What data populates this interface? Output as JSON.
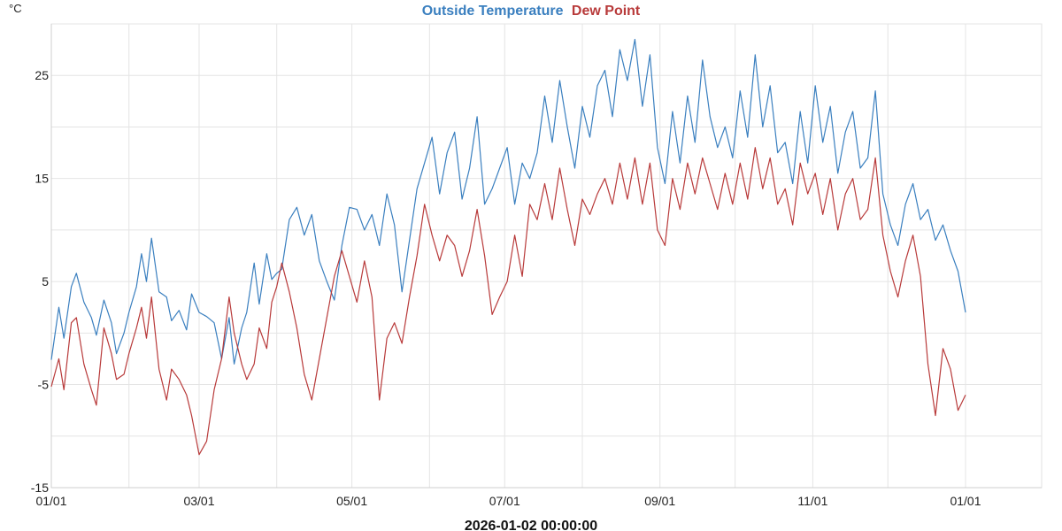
{
  "chart_data": {
    "type": "line",
    "title": "",
    "xlabel": "2026-01-02 00:00:00",
    "ylabel": "°C",
    "x_start": "2025-01-01",
    "x_end": "2026-01-01",
    "xlim": [
      "2025-01-01",
      "2026-04-06"
    ],
    "ylim": [
      -15,
      30
    ],
    "grid": true,
    "legend": "top-center",
    "x_ticks": [
      {
        "date": "2025-01-01",
        "label": "01/01"
      },
      {
        "date": "2025-03-01",
        "label": "03/01"
      },
      {
        "date": "2025-05-01",
        "label": "05/01"
      },
      {
        "date": "2025-07-01",
        "label": "07/01"
      },
      {
        "date": "2025-09-01",
        "label": "09/01"
      },
      {
        "date": "2025-11-01",
        "label": "11/01"
      },
      {
        "date": "2026-01-01",
        "label": "01/01"
      }
    ],
    "y_ticks": [
      {
        "value": 25,
        "label": "25"
      },
      {
        "value": 15,
        "label": "15"
      },
      {
        "value": 5,
        "label": "5"
      },
      {
        "value": -5,
        "label": "-5"
      },
      {
        "value": -15,
        "label": "-15"
      }
    ],
    "series": [
      {
        "name": "Outside Temperature",
        "color": "#3a7fbf",
        "points": [
          [
            "2025-01-01",
            -2.6
          ],
          [
            "2025-01-04",
            2.5
          ],
          [
            "2025-01-06",
            -0.5
          ],
          [
            "2025-01-09",
            4.5
          ],
          [
            "2025-01-11",
            5.8
          ],
          [
            "2025-01-14",
            3.0
          ],
          [
            "2025-01-17",
            1.5
          ],
          [
            "2025-01-19",
            -0.2
          ],
          [
            "2025-01-22",
            3.2
          ],
          [
            "2025-01-25",
            1.0
          ],
          [
            "2025-01-27",
            -2.0
          ],
          [
            "2025-01-30",
            0.0
          ],
          [
            "2025-02-01",
            2.0
          ],
          [
            "2025-02-04",
            4.5
          ],
          [
            "2025-02-06",
            7.7
          ],
          [
            "2025-02-08",
            5.0
          ],
          [
            "2025-02-10",
            9.2
          ],
          [
            "2025-02-13",
            4.0
          ],
          [
            "2025-02-16",
            3.5
          ],
          [
            "2025-02-18",
            1.2
          ],
          [
            "2025-02-21",
            2.2
          ],
          [
            "2025-02-24",
            0.3
          ],
          [
            "2025-02-26",
            3.8
          ],
          [
            "2025-03-01",
            2.0
          ],
          [
            "2025-03-04",
            1.6
          ],
          [
            "2025-03-07",
            1.0
          ],
          [
            "2025-03-10",
            -2.5
          ],
          [
            "2025-03-13",
            1.5
          ],
          [
            "2025-03-15",
            -3.0
          ],
          [
            "2025-03-18",
            0.5
          ],
          [
            "2025-03-20",
            2.0
          ],
          [
            "2025-03-23",
            6.8
          ],
          [
            "2025-03-25",
            2.8
          ],
          [
            "2025-03-28",
            7.7
          ],
          [
            "2025-03-30",
            5.2
          ],
          [
            "2025-04-01",
            5.8
          ],
          [
            "2025-04-03",
            6.2
          ],
          [
            "2025-04-06",
            11.0
          ],
          [
            "2025-04-09",
            12.2
          ],
          [
            "2025-04-12",
            9.5
          ],
          [
            "2025-04-15",
            11.5
          ],
          [
            "2025-04-18",
            7.0
          ],
          [
            "2025-04-21",
            5.0
          ],
          [
            "2025-04-24",
            3.2
          ],
          [
            "2025-04-27",
            8.5
          ],
          [
            "2025-04-30",
            12.2
          ],
          [
            "2025-05-03",
            12.0
          ],
          [
            "2025-05-06",
            10.0
          ],
          [
            "2025-05-09",
            11.5
          ],
          [
            "2025-05-12",
            8.5
          ],
          [
            "2025-05-15",
            13.5
          ],
          [
            "2025-05-18",
            10.5
          ],
          [
            "2025-05-21",
            4.0
          ],
          [
            "2025-05-24",
            9.0
          ],
          [
            "2025-05-27",
            14.0
          ],
          [
            "2025-05-30",
            16.5
          ],
          [
            "2025-06-02",
            19.0
          ],
          [
            "2025-06-05",
            13.5
          ],
          [
            "2025-06-08",
            17.5
          ],
          [
            "2025-06-11",
            19.5
          ],
          [
            "2025-06-14",
            13.0
          ],
          [
            "2025-06-17",
            16.0
          ],
          [
            "2025-06-20",
            21.0
          ],
          [
            "2025-06-23",
            12.5
          ],
          [
            "2025-06-26",
            14.0
          ],
          [
            "2025-06-29",
            16.0
          ],
          [
            "2025-07-02",
            18.0
          ],
          [
            "2025-07-05",
            12.5
          ],
          [
            "2025-07-08",
            16.5
          ],
          [
            "2025-07-11",
            15.0
          ],
          [
            "2025-07-14",
            17.5
          ],
          [
            "2025-07-17",
            23.0
          ],
          [
            "2025-07-20",
            18.5
          ],
          [
            "2025-07-23",
            24.5
          ],
          [
            "2025-07-26",
            20.0
          ],
          [
            "2025-07-29",
            16.0
          ],
          [
            "2025-08-01",
            22.0
          ],
          [
            "2025-08-04",
            19.0
          ],
          [
            "2025-08-07",
            24.0
          ],
          [
            "2025-08-10",
            25.5
          ],
          [
            "2025-08-13",
            21.0
          ],
          [
            "2025-08-16",
            27.5
          ],
          [
            "2025-08-19",
            24.5
          ],
          [
            "2025-08-22",
            28.5
          ],
          [
            "2025-08-25",
            22.0
          ],
          [
            "2025-08-28",
            27.0
          ],
          [
            "2025-08-31",
            18.0
          ],
          [
            "2025-09-03",
            14.5
          ],
          [
            "2025-09-06",
            21.5
          ],
          [
            "2025-09-09",
            16.5
          ],
          [
            "2025-09-12",
            23.0
          ],
          [
            "2025-09-15",
            18.5
          ],
          [
            "2025-09-18",
            26.5
          ],
          [
            "2025-09-21",
            21.0
          ],
          [
            "2025-09-24",
            18.0
          ],
          [
            "2025-09-27",
            20.0
          ],
          [
            "2025-09-30",
            17.0
          ],
          [
            "2025-10-03",
            23.5
          ],
          [
            "2025-10-06",
            19.0
          ],
          [
            "2025-10-09",
            27.0
          ],
          [
            "2025-10-12",
            20.0
          ],
          [
            "2025-10-15",
            24.0
          ],
          [
            "2025-10-18",
            17.5
          ],
          [
            "2025-10-21",
            18.5
          ],
          [
            "2025-10-24",
            14.5
          ],
          [
            "2025-10-27",
            21.5
          ],
          [
            "2025-10-30",
            16.5
          ],
          [
            "2025-11-02",
            24.0
          ],
          [
            "2025-11-05",
            18.5
          ],
          [
            "2025-11-08",
            22.0
          ],
          [
            "2025-11-11",
            15.5
          ],
          [
            "2025-11-14",
            19.5
          ],
          [
            "2025-11-17",
            21.5
          ],
          [
            "2025-11-20",
            16.0
          ],
          [
            "2025-11-23",
            17.0
          ],
          [
            "2025-11-26",
            23.5
          ],
          [
            "2025-11-29",
            13.5
          ],
          [
            "2025-12-02",
            10.5
          ],
          [
            "2025-12-05",
            8.5
          ],
          [
            "2025-12-08",
            12.5
          ],
          [
            "2025-12-11",
            14.5
          ],
          [
            "2025-12-14",
            11.0
          ],
          [
            "2025-12-17",
            12.0
          ],
          [
            "2025-12-20",
            9.0
          ],
          [
            "2025-12-23",
            10.5
          ],
          [
            "2025-12-26",
            8.0
          ],
          [
            "2025-12-29",
            6.0
          ],
          [
            "2026-01-01",
            2.0
          ]
        ]
      },
      {
        "name": "Dew Point",
        "color": "#b83a3a",
        "points": [
          [
            "2025-01-01",
            -5.2
          ],
          [
            "2025-01-04",
            -2.5
          ],
          [
            "2025-01-06",
            -5.5
          ],
          [
            "2025-01-09",
            1.0
          ],
          [
            "2025-01-11",
            1.5
          ],
          [
            "2025-01-14",
            -3.0
          ],
          [
            "2025-01-17",
            -5.5
          ],
          [
            "2025-01-19",
            -7.0
          ],
          [
            "2025-01-22",
            0.5
          ],
          [
            "2025-01-25",
            -2.0
          ],
          [
            "2025-01-27",
            -4.5
          ],
          [
            "2025-01-30",
            -4.0
          ],
          [
            "2025-02-01",
            -2.0
          ],
          [
            "2025-02-04",
            0.5
          ],
          [
            "2025-02-06",
            2.5
          ],
          [
            "2025-02-08",
            -0.5
          ],
          [
            "2025-02-10",
            3.5
          ],
          [
            "2025-02-13",
            -3.5
          ],
          [
            "2025-02-16",
            -6.5
          ],
          [
            "2025-02-18",
            -3.5
          ],
          [
            "2025-02-21",
            -4.5
          ],
          [
            "2025-02-24",
            -6.0
          ],
          [
            "2025-02-26",
            -8.0
          ],
          [
            "2025-03-01",
            -11.8
          ],
          [
            "2025-03-04",
            -10.5
          ],
          [
            "2025-03-07",
            -5.5
          ],
          [
            "2025-03-10",
            -2.5
          ],
          [
            "2025-03-13",
            3.5
          ],
          [
            "2025-03-15",
            0.0
          ],
          [
            "2025-03-18",
            -3.0
          ],
          [
            "2025-03-20",
            -4.5
          ],
          [
            "2025-03-23",
            -3.0
          ],
          [
            "2025-03-25",
            0.5
          ],
          [
            "2025-03-28",
            -1.5
          ],
          [
            "2025-03-30",
            3.0
          ],
          [
            "2025-04-01",
            4.5
          ],
          [
            "2025-04-03",
            6.8
          ],
          [
            "2025-04-06",
            4.0
          ],
          [
            "2025-04-09",
            0.5
          ],
          [
            "2025-04-12",
            -4.0
          ],
          [
            "2025-04-15",
            -6.5
          ],
          [
            "2025-04-18",
            -2.5
          ],
          [
            "2025-04-21",
            1.5
          ],
          [
            "2025-04-24",
            5.5
          ],
          [
            "2025-04-27",
            8.0
          ],
          [
            "2025-04-30",
            5.5
          ],
          [
            "2025-05-03",
            3.0
          ],
          [
            "2025-05-06",
            7.0
          ],
          [
            "2025-05-09",
            3.5
          ],
          [
            "2025-05-12",
            -6.5
          ],
          [
            "2025-05-15",
            -0.5
          ],
          [
            "2025-05-18",
            1.0
          ],
          [
            "2025-05-21",
            -1.0
          ],
          [
            "2025-05-24",
            3.5
          ],
          [
            "2025-05-27",
            7.5
          ],
          [
            "2025-05-30",
            12.5
          ],
          [
            "2025-06-02",
            9.5
          ],
          [
            "2025-06-05",
            7.0
          ],
          [
            "2025-06-08",
            9.5
          ],
          [
            "2025-06-11",
            8.5
          ],
          [
            "2025-06-14",
            5.5
          ],
          [
            "2025-06-17",
            8.0
          ],
          [
            "2025-06-20",
            12.0
          ],
          [
            "2025-06-23",
            7.5
          ],
          [
            "2025-06-26",
            1.8
          ],
          [
            "2025-06-29",
            3.5
          ],
          [
            "2025-07-02",
            5.0
          ],
          [
            "2025-07-05",
            9.5
          ],
          [
            "2025-07-08",
            5.5
          ],
          [
            "2025-07-11",
            12.5
          ],
          [
            "2025-07-14",
            11.0
          ],
          [
            "2025-07-17",
            14.5
          ],
          [
            "2025-07-20",
            11.0
          ],
          [
            "2025-07-23",
            16.0
          ],
          [
            "2025-07-26",
            12.0
          ],
          [
            "2025-07-29",
            8.5
          ],
          [
            "2025-08-01",
            13.0
          ],
          [
            "2025-08-04",
            11.5
          ],
          [
            "2025-08-07",
            13.5
          ],
          [
            "2025-08-10",
            15.0
          ],
          [
            "2025-08-13",
            12.5
          ],
          [
            "2025-08-16",
            16.5
          ],
          [
            "2025-08-19",
            13.0
          ],
          [
            "2025-08-22",
            17.0
          ],
          [
            "2025-08-25",
            12.5
          ],
          [
            "2025-08-28",
            16.5
          ],
          [
            "2025-08-31",
            10.0
          ],
          [
            "2025-09-03",
            8.5
          ],
          [
            "2025-09-06",
            15.0
          ],
          [
            "2025-09-09",
            12.0
          ],
          [
            "2025-09-12",
            16.5
          ],
          [
            "2025-09-15",
            13.5
          ],
          [
            "2025-09-18",
            17.0
          ],
          [
            "2025-09-21",
            14.5
          ],
          [
            "2025-09-24",
            12.0
          ],
          [
            "2025-09-27",
            15.5
          ],
          [
            "2025-09-30",
            12.5
          ],
          [
            "2025-10-03",
            16.5
          ],
          [
            "2025-10-06",
            13.0
          ],
          [
            "2025-10-09",
            18.0
          ],
          [
            "2025-10-12",
            14.0
          ],
          [
            "2025-10-15",
            17.0
          ],
          [
            "2025-10-18",
            12.5
          ],
          [
            "2025-10-21",
            14.0
          ],
          [
            "2025-10-24",
            10.5
          ],
          [
            "2025-10-27",
            16.5
          ],
          [
            "2025-10-30",
            13.5
          ],
          [
            "2025-11-02",
            15.5
          ],
          [
            "2025-11-05",
            11.5
          ],
          [
            "2025-11-08",
            15.0
          ],
          [
            "2025-11-11",
            10.0
          ],
          [
            "2025-11-14",
            13.5
          ],
          [
            "2025-11-17",
            15.0
          ],
          [
            "2025-11-20",
            11.0
          ],
          [
            "2025-11-23",
            12.0
          ],
          [
            "2025-11-26",
            17.0
          ],
          [
            "2025-11-29",
            9.5
          ],
          [
            "2025-12-02",
            6.0
          ],
          [
            "2025-12-05",
            3.5
          ],
          [
            "2025-12-08",
            7.0
          ],
          [
            "2025-12-11",
            9.5
          ],
          [
            "2025-12-14",
            5.5
          ],
          [
            "2025-12-17",
            -3.0
          ],
          [
            "2025-12-20",
            -8.0
          ],
          [
            "2025-12-23",
            -1.5
          ],
          [
            "2025-12-26",
            -3.5
          ],
          [
            "2025-12-29",
            -7.5
          ],
          [
            "2026-01-01",
            -6.0
          ]
        ]
      }
    ]
  }
}
